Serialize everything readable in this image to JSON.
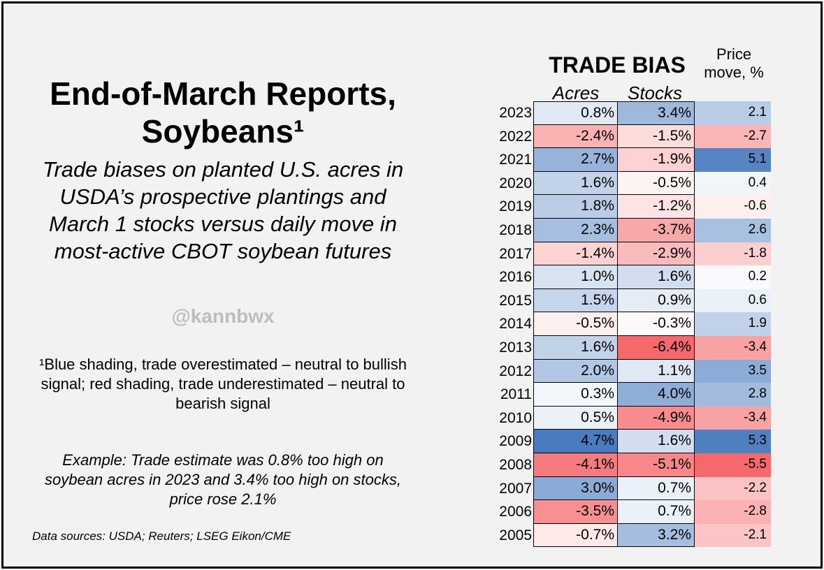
{
  "title": "End-of-March Reports, Soybeans¹",
  "subtitle": "Trade biases on planted U.S. acres in USDA’s prospective plantings and March 1 stocks versus daily move in most-active CBOT soybean futures",
  "handle": "@kannbwx",
  "footnote": "¹Blue shading, trade overestimated – neutral to bullish signal; red shading, trade underestimated – neutral to bearish signal",
  "example": "Example: Trade estimate was 0.8% too high on soybean acres in 2023 and 3.4% too high on stocks, price rose 2.1%",
  "sources": "Data sources: USDA; Reuters; LSEG Eikon/CME",
  "colors": {
    "background": "#f2f2f2",
    "positive": "#4a7bbf",
    "negative": "#f5686b",
    "neutral": "#ffffff"
  },
  "chart_data": {
    "type": "table",
    "group_header": "TRADE BIAS",
    "columns": [
      "Acres",
      "Stocks",
      "Price move, %"
    ],
    "rows": [
      {
        "year": "2023",
        "acres": 0.8,
        "stocks": 3.4,
        "price": 2.1
      },
      {
        "year": "2022",
        "acres": -2.4,
        "stocks": -1.5,
        "price": -2.7
      },
      {
        "year": "2021",
        "acres": 2.7,
        "stocks": -1.9,
        "price": 5.1
      },
      {
        "year": "2020",
        "acres": 1.6,
        "stocks": -0.5,
        "price": 0.4
      },
      {
        "year": "2019",
        "acres": 1.8,
        "stocks": -1.2,
        "price": -0.6
      },
      {
        "year": "2018",
        "acres": 2.3,
        "stocks": -3.7,
        "price": 2.6
      },
      {
        "year": "2017",
        "acres": -1.4,
        "stocks": -2.9,
        "price": -1.8
      },
      {
        "year": "2016",
        "acres": 1.0,
        "stocks": 1.6,
        "price": 0.2
      },
      {
        "year": "2015",
        "acres": 1.5,
        "stocks": 0.9,
        "price": 0.6
      },
      {
        "year": "2014",
        "acres": -0.5,
        "stocks": -0.3,
        "price": 1.9
      },
      {
        "year": "2013",
        "acres": 1.6,
        "stocks": -6.4,
        "price": -3.4
      },
      {
        "year": "2012",
        "acres": 2.0,
        "stocks": 1.1,
        "price": 3.5
      },
      {
        "year": "2011",
        "acres": 0.3,
        "stocks": 4.0,
        "price": 2.8
      },
      {
        "year": "2010",
        "acres": 0.5,
        "stocks": -4.9,
        "price": -3.4
      },
      {
        "year": "2009",
        "acres": 4.7,
        "stocks": 1.6,
        "price": 5.3
      },
      {
        "year": "2008",
        "acres": -4.1,
        "stocks": -5.1,
        "price": -5.5
      },
      {
        "year": "2007",
        "acres": 3.0,
        "stocks": 0.7,
        "price": -2.2
      },
      {
        "year": "2006",
        "acres": -3.5,
        "stocks": 0.7,
        "price": -2.8
      },
      {
        "year": "2005",
        "acres": -0.7,
        "stocks": 3.2,
        "price": -2.1
      }
    ]
  }
}
